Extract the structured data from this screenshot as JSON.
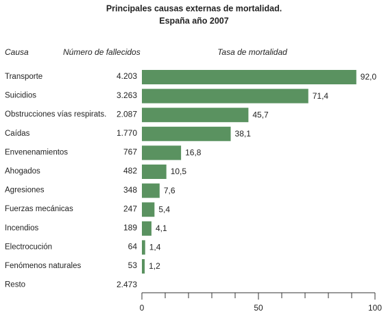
{
  "chart_data": {
    "type": "bar",
    "title": "Principales causas externas de mortalidad.",
    "subtitle": "España año 2007",
    "category_header": "Causa",
    "deaths_header": "Número de fallecidos",
    "value_header": "Tasa de mortalidad",
    "categories": [
      "Transporte",
      "Suicidios",
      "Obstrucciones vías respirats.",
      "Caídas",
      "Envenenamientos",
      "Ahogados",
      "Agresiones",
      "Fuerzas mecánicas",
      "Incendios",
      "Electrocución",
      "Fenómenos naturales",
      "Resto"
    ],
    "deaths": [
      "4.203",
      "3.263",
      "2.087",
      "1.770",
      "767",
      "482",
      "348",
      "247",
      "189",
      "64",
      "53",
      "2.473"
    ],
    "values": [
      92.0,
      71.4,
      45.7,
      38.1,
      16.8,
      10.5,
      7.6,
      5.4,
      4.1,
      1.4,
      1.2,
      null
    ],
    "value_labels": [
      "92,0",
      "71,4",
      "45,7",
      "38,1",
      "16,8",
      "10,5",
      "7,6",
      "5,4",
      "4,1",
      "1,4",
      "1,2",
      null
    ],
    "color": "#5a9260",
    "xlim": [
      0,
      100
    ],
    "xticks": [
      0,
      50,
      100
    ],
    "xticks_minor": [
      10,
      20,
      30,
      40,
      60,
      70,
      80,
      90
    ]
  }
}
